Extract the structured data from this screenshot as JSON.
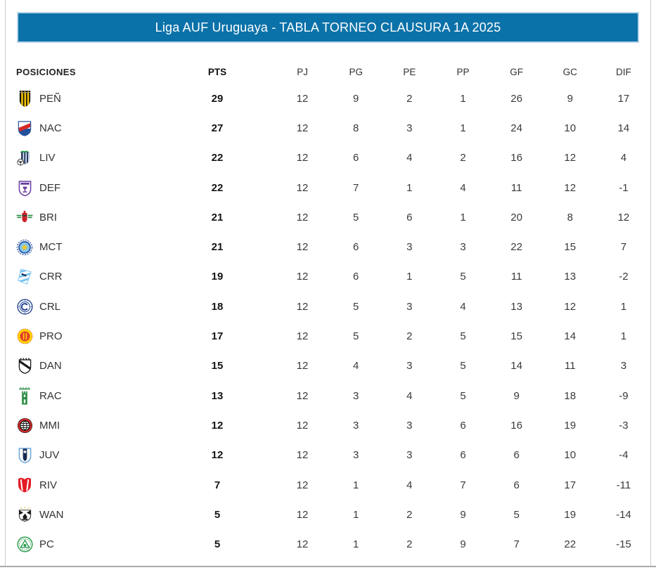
{
  "title": "Liga AUF Uruguaya - TABLA TORNEO CLAUSURA 1A 2025",
  "colors": {
    "title_bar_bg": "#0b72a9",
    "title_bar_border": "#b7d5e8",
    "title_text": "#ffffff",
    "frame_border": "#cccccc",
    "bottom_rule": "#a9a9a9",
    "body_text": "#3a3a3a",
    "emphasis_text": "#141414"
  },
  "chart_data": {
    "type": "table",
    "title": "Liga AUF Uruguaya - TABLA TORNEO CLAUSURA 1A 2025",
    "columns": [
      "POSICIONES",
      "PTS",
      "PJ",
      "PG",
      "PE",
      "PP",
      "GF",
      "GC",
      "DIF"
    ],
    "rows": [
      {
        "team": "PEÑ",
        "icon": "penarol-crest-icon",
        "values": [
          29,
          12,
          9,
          2,
          1,
          26,
          9,
          17
        ]
      },
      {
        "team": "NAC",
        "icon": "nacional-crest-icon",
        "values": [
          27,
          12,
          8,
          3,
          1,
          24,
          10,
          14
        ]
      },
      {
        "team": "LIV",
        "icon": "liverpool-crest-icon",
        "values": [
          22,
          12,
          6,
          4,
          2,
          16,
          12,
          4
        ]
      },
      {
        "team": "DEF",
        "icon": "defensor-crest-icon",
        "values": [
          22,
          12,
          7,
          1,
          4,
          11,
          12,
          -1
        ]
      },
      {
        "team": "BRI",
        "icon": "boston-river-crest-icon",
        "values": [
          21,
          12,
          5,
          6,
          1,
          20,
          8,
          12
        ]
      },
      {
        "team": "MCT",
        "icon": "torque-crest-icon",
        "values": [
          21,
          12,
          6,
          3,
          3,
          22,
          15,
          7
        ]
      },
      {
        "team": "CRR",
        "icon": "cerro-crest-icon",
        "values": [
          19,
          12,
          6,
          1,
          5,
          11,
          13,
          -2
        ]
      },
      {
        "team": "CRL",
        "icon": "cerro-largo-crest-icon",
        "values": [
          18,
          12,
          5,
          3,
          4,
          13,
          12,
          1
        ]
      },
      {
        "team": "PRO",
        "icon": "progreso-crest-icon",
        "values": [
          17,
          12,
          5,
          2,
          5,
          15,
          14,
          1
        ]
      },
      {
        "team": "DAN",
        "icon": "danubio-crest-icon",
        "values": [
          15,
          12,
          4,
          3,
          5,
          14,
          11,
          3
        ]
      },
      {
        "team": "RAC",
        "icon": "racing-crest-icon",
        "values": [
          13,
          12,
          3,
          4,
          5,
          9,
          18,
          -9
        ]
      },
      {
        "team": "MMI",
        "icon": "miramar-crest-icon",
        "values": [
          12,
          12,
          3,
          3,
          6,
          16,
          19,
          -3
        ]
      },
      {
        "team": "JUV",
        "icon": "juventud-crest-icon",
        "values": [
          12,
          12,
          3,
          3,
          6,
          6,
          10,
          -4
        ]
      },
      {
        "team": "RIV",
        "icon": "river-plate-crest-icon",
        "values": [
          7,
          12,
          1,
          4,
          7,
          6,
          17,
          -11
        ]
      },
      {
        "team": "WAN",
        "icon": "wanderers-crest-icon",
        "values": [
          5,
          12,
          1,
          2,
          9,
          5,
          19,
          -14
        ]
      },
      {
        "team": "PC",
        "icon": "plaza-colonia-crest-icon",
        "values": [
          5,
          12,
          1,
          2,
          9,
          7,
          22,
          -15
        ]
      }
    ]
  }
}
